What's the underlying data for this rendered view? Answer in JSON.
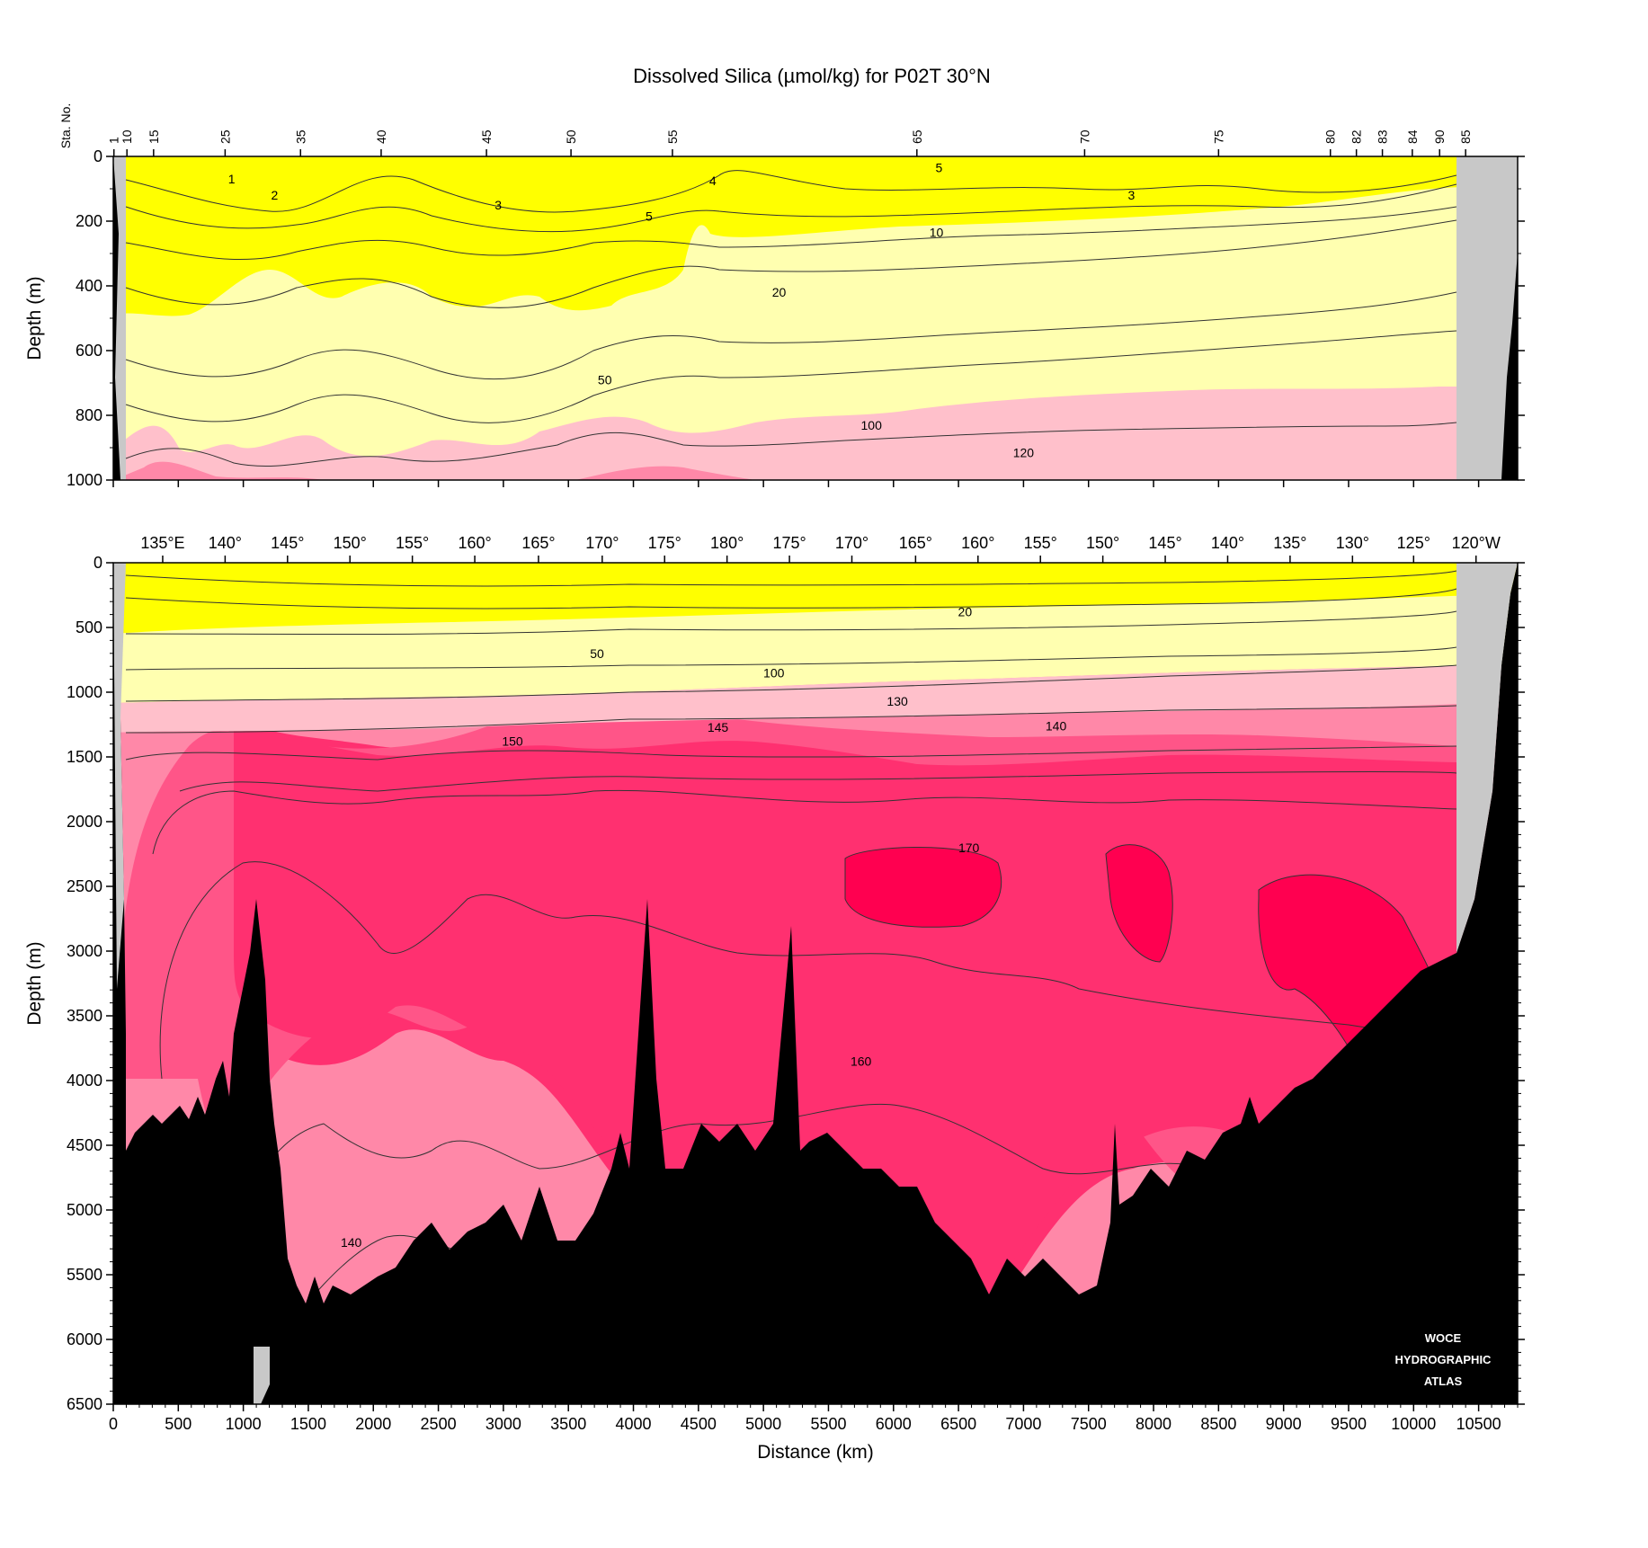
{
  "title": "Dissolved Silica (µmol/kg) for P02T 30°N",
  "colors": {
    "lt20": "#ffff00",
    "b20_100": "#ffffb0",
    "b100_130": "#ffc0cb",
    "b130_150": "#ff88a8",
    "b150_160": "#ff5588",
    "b160_170": "#ff3070",
    "gt170": "#ff0050",
    "bottom": "#000000",
    "nodata": "#c8c8c8"
  },
  "chart_data": [
    {
      "type": "heatmap",
      "panel": "upper",
      "ylabel": "Depth (m)",
      "ylim": [
        1000,
        0
      ],
      "xlim": [
        0,
        10800
      ],
      "y_ticks": [
        "0",
        "200",
        "400",
        "600",
        "800",
        "1000"
      ],
      "station_header": "Sta. No.",
      "stations": [
        {
          "label": "1",
          "x": 5
        },
        {
          "label": "10",
          "x": 105
        },
        {
          "label": "15",
          "x": 310
        },
        {
          "label": "25",
          "x": 860
        },
        {
          "label": "35",
          "x": 1440
        },
        {
          "label": "40",
          "x": 2060
        },
        {
          "label": "45",
          "x": 2870
        },
        {
          "label": "50",
          "x": 3520
        },
        {
          "label": "55",
          "x": 4300
        },
        {
          "label": "65",
          "x": 6180
        },
        {
          "label": "70",
          "x": 7470
        },
        {
          "label": "75",
          "x": 8500
        },
        {
          "label": "80",
          "x": 9360
        },
        {
          "label": "82",
          "x": 9560
        },
        {
          "label": "83",
          "x": 9760
        },
        {
          "label": "84",
          "x": 9990
        },
        {
          "label": "90",
          "x": 10200
        },
        {
          "label": "85",
          "x": 10400
        }
      ],
      "contour_labels": [
        {
          "text": "1",
          "x": 910,
          "y": 70
        },
        {
          "text": "2",
          "x": 1240,
          "y": 120
        },
        {
          "text": "3",
          "x": 2960,
          "y": 150
        },
        {
          "text": "4",
          "x": 4610,
          "y": 75
        },
        {
          "text": "5",
          "x": 4120,
          "y": 185
        },
        {
          "text": "5",
          "x": 6350,
          "y": 35
        },
        {
          "text": "3",
          "x": 7830,
          "y": 120
        },
        {
          "text": "10",
          "x": 6330,
          "y": 235
        },
        {
          "text": "20",
          "x": 5120,
          "y": 420
        },
        {
          "text": "50",
          "x": 3780,
          "y": 690
        },
        {
          "text": "100",
          "x": 5830,
          "y": 830
        },
        {
          "text": "120",
          "x": 7000,
          "y": 915
        }
      ]
    },
    {
      "type": "heatmap",
      "panel": "lower",
      "ylabel": "Depth (m)",
      "xlabel": "Distance (km)",
      "ylim": [
        6500,
        0
      ],
      "xlim": [
        0,
        10800
      ],
      "y_ticks": [
        "0",
        "500",
        "1000",
        "1500",
        "2000",
        "2500",
        "3000",
        "3500",
        "4000",
        "4500",
        "5000",
        "5500",
        "6000",
        "6500"
      ],
      "x_ticks": [
        "0",
        "500",
        "1000",
        "1500",
        "2000",
        "2500",
        "3000",
        "3500",
        "4000",
        "4500",
        "5000",
        "5500",
        "6000",
        "6500",
        "7000",
        "7500",
        "8000",
        "8500",
        "9000",
        "9500",
        "10000",
        "10500"
      ],
      "longitude_labels": [
        {
          "text": "135°E",
          "x": 380
        },
        {
          "text": "140°",
          "x": 860
        },
        {
          "text": "145°",
          "x": 1340
        },
        {
          "text": "150°",
          "x": 1820
        },
        {
          "text": "155°",
          "x": 2300
        },
        {
          "text": "160°",
          "x": 2780
        },
        {
          "text": "165°",
          "x": 3270
        },
        {
          "text": "170°",
          "x": 3760
        },
        {
          "text": "175°",
          "x": 4240
        },
        {
          "text": "180°",
          "x": 4720
        },
        {
          "text": "175°",
          "x": 5200
        },
        {
          "text": "170°",
          "x": 5680
        },
        {
          "text": "165°",
          "x": 6170
        },
        {
          "text": "160°",
          "x": 6650
        },
        {
          "text": "155°",
          "x": 7130
        },
        {
          "text": "150°",
          "x": 7610
        },
        {
          "text": "145°",
          "x": 8090
        },
        {
          "text": "140°",
          "x": 8570
        },
        {
          "text": "135°",
          "x": 9050
        },
        {
          "text": "130°",
          "x": 9530
        },
        {
          "text": "125°",
          "x": 10000
        },
        {
          "text": "120°W",
          "x": 10480
        }
      ],
      "contour_labels": [
        {
          "text": "20",
          "x": 6550,
          "y": 380
        },
        {
          "text": "50",
          "x": 3720,
          "y": 700
        },
        {
          "text": "100",
          "x": 5080,
          "y": 850
        },
        {
          "text": "130",
          "x": 6030,
          "y": 1070
        },
        {
          "text": "150",
          "x": 3070,
          "y": 1380
        },
        {
          "text": "145",
          "x": 4650,
          "y": 1270
        },
        {
          "text": "140",
          "x": 7250,
          "y": 1260
        },
        {
          "text": "170",
          "x": 6580,
          "y": 2200
        },
        {
          "text": "160",
          "x": 5750,
          "y": 3850
        },
        {
          "text": "140",
          "x": 1830,
          "y": 5250
        }
      ],
      "watermark": [
        "WOCE",
        "HYDROGRAPHIC",
        "ATLAS"
      ]
    }
  ]
}
